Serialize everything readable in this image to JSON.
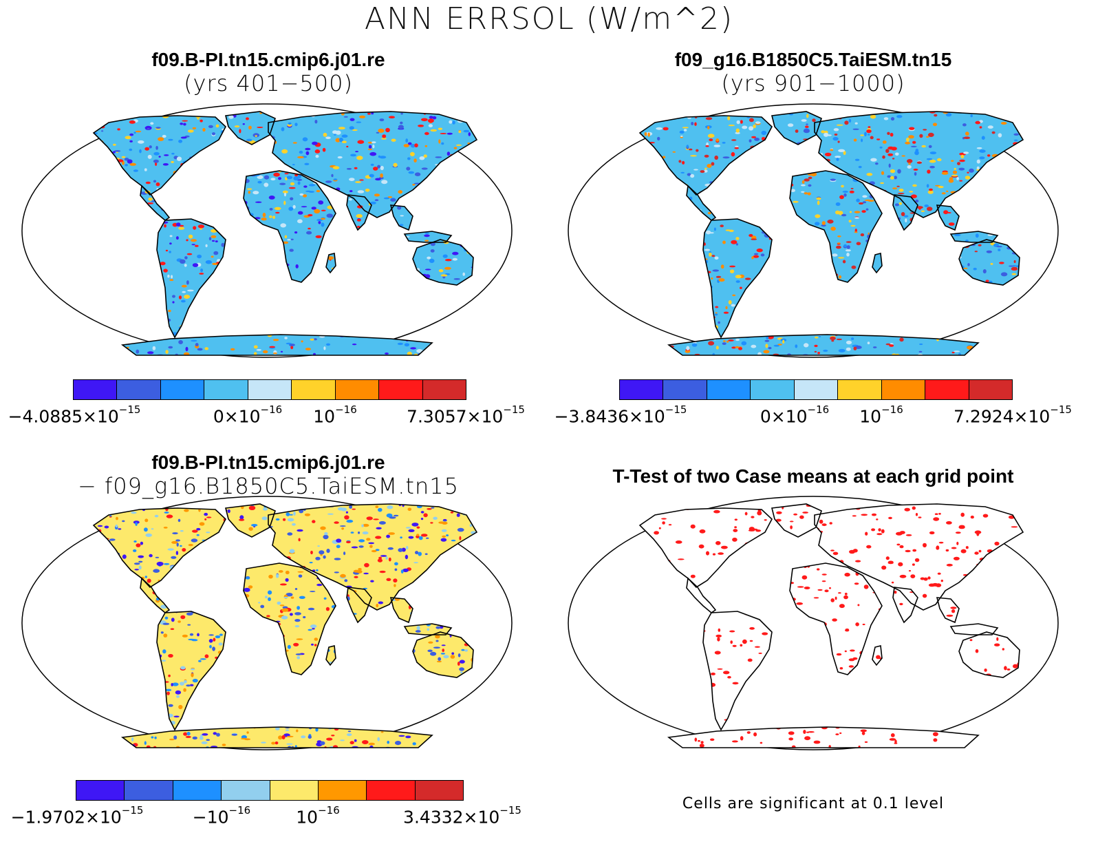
{
  "main_title": "ANN ERRSOL (W/m^2)",
  "panels": [
    {
      "title_line1": "f09.B-PI.tn15.cmip6.j01.re",
      "title_line2": "(yrs 401−500)",
      "colorbar": [
        "#3f17f5",
        "#3c5ee0",
        "#1e90ff",
        "#4fc0f0",
        "#c6e6f8",
        "#ffd22a",
        "#ff8c00",
        "#ff1a1a",
        "#d42a2a"
      ],
      "labels": [
        {
          "mant": "−4.0885×10",
          "exp": "−15"
        },
        {
          "mant": "0×10",
          "exp": "−16"
        },
        {
          "mant": "10",
          "exp": "−16"
        },
        {
          "mant": "7.3057×10",
          "exp": "−15"
        }
      ]
    },
    {
      "title_line1": "f09_g16.B1850C5.TaiESM.tn15",
      "title_line2": "(yrs 901−1000)",
      "colorbar": [
        "#3f17f5",
        "#3c5ee0",
        "#1e90ff",
        "#4fc0f0",
        "#c6e6f8",
        "#ffd22a",
        "#ff8c00",
        "#ff1a1a",
        "#d42a2a"
      ],
      "labels": [
        {
          "mant": "−3.8436×10",
          "exp": "−15"
        },
        {
          "mant": "0×10",
          "exp": "−16"
        },
        {
          "mant": "10",
          "exp": "−16"
        },
        {
          "mant": "7.2924×10",
          "exp": "−15"
        }
      ]
    },
    {
      "title_line1": "f09.B-PI.tn15.cmip6.j01.re",
      "title_line2": "− f09_g16.B1850C5.TaiESM.tn15",
      "colorbar": [
        "#3f17f5",
        "#3c5ee0",
        "#1e90ff",
        "#92cfee",
        "#fde96b",
        "#ff9800",
        "#ff1a1a",
        "#d42a2a"
      ],
      "labels": [
        {
          "mant": "−1.9702×10",
          "exp": "−15"
        },
        {
          "mant": "−10",
          "exp": "−16"
        },
        {
          "mant": "10",
          "exp": "−16"
        },
        {
          "mant": "3.4332×10",
          "exp": "−15"
        }
      ]
    },
    {
      "title_line1": "T-Test of two Case means at each grid point",
      "note": "Cells are significant at 0.1 level"
    }
  ]
}
